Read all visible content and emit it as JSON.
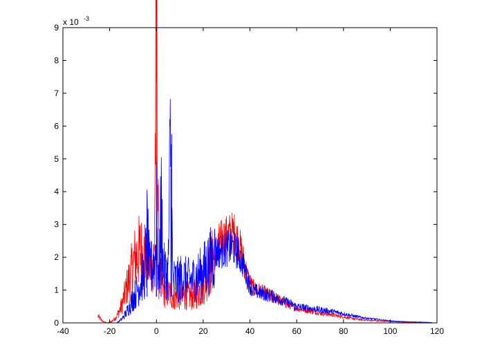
{
  "chart_data": {
    "type": "line",
    "title": "",
    "xlabel": "",
    "ylabel": "",
    "xlim": [
      -40,
      120
    ],
    "ylim": [
      0,
      9
    ],
    "xticks": [
      -40,
      -20,
      0,
      20,
      40,
      60,
      80,
      100,
      120
    ],
    "yticks": [
      0,
      1,
      2,
      3,
      4,
      5,
      6,
      7,
      8,
      9
    ],
    "xtick_labels": [
      "-40",
      "-20",
      "0",
      "20",
      "40",
      "60",
      "80",
      "100",
      "120"
    ],
    "ytick_labels": [
      "0",
      "1",
      "2",
      "3",
      "4",
      "5",
      "6",
      "7",
      "8",
      "9"
    ],
    "y_exponent_prefix": "x 10",
    "y_exponent_power": "-3",
    "grid": false,
    "series": [
      {
        "color": "#ff0000",
        "x": [
          -25,
          -23,
          -21,
          -19,
          -17,
          -15,
          -13,
          -11,
          -9,
          -7,
          -5,
          -3,
          -1,
          0,
          1,
          3,
          5,
          7,
          9,
          11,
          13,
          15,
          17,
          19,
          21,
          23,
          25,
          27,
          29,
          31,
          33,
          35,
          37,
          39,
          41,
          43,
          45,
          50,
          55,
          60,
          65,
          70,
          75,
          80,
          85,
          90,
          95,
          100,
          105,
          110,
          115,
          118
        ],
        "y": [
          0.2,
          0.05,
          0.0,
          0.05,
          0.2,
          0.5,
          1.0,
          1.5,
          2.0,
          2.2,
          2.0,
          1.8,
          2.0,
          8.8,
          1.5,
          1.0,
          0.9,
          0.85,
          0.8,
          0.8,
          0.85,
          0.8,
          0.9,
          1.0,
          1.3,
          1.7,
          2.1,
          2.5,
          2.6,
          2.7,
          2.75,
          2.5,
          2.0,
          1.4,
          1.1,
          1.0,
          0.95,
          0.8,
          0.6,
          0.45,
          0.38,
          0.3,
          0.25,
          0.18,
          0.12,
          0.08,
          0.06,
          0.04,
          0.02,
          0.02,
          0.01,
          0.0
        ]
      },
      {
        "color": "#0000ff",
        "x": [
          -17,
          -15,
          -13,
          -11,
          -9,
          -7,
          -5,
          -4,
          -3,
          -1,
          0,
          1,
          2,
          3,
          5,
          6,
          7,
          9,
          11,
          13,
          15,
          17,
          19,
          21,
          23,
          25,
          27,
          29,
          31,
          33,
          35,
          37,
          39,
          41,
          43,
          45,
          50,
          55,
          60,
          65,
          70,
          75,
          80,
          85,
          90,
          95,
          100,
          105,
          110,
          115,
          118
        ],
        "y": [
          0.0,
          0.1,
          0.3,
          0.6,
          0.9,
          1.2,
          1.5,
          2.8,
          1.6,
          1.8,
          2.4,
          1.2,
          3.7,
          1.6,
          1.5,
          5.7,
          1.3,
          1.3,
          1.4,
          1.3,
          1.3,
          1.4,
          1.5,
          1.7,
          1.9,
          2.1,
          2.2,
          2.2,
          2.3,
          2.3,
          2.1,
          1.8,
          1.3,
          1.0,
          0.95,
          0.9,
          0.8,
          0.65,
          0.5,
          0.45,
          0.4,
          0.35,
          0.28,
          0.2,
          0.14,
          0.1,
          0.06,
          0.04,
          0.03,
          0.02,
          0.01
        ]
      }
    ],
    "spikes": [
      {
        "series_index": 0,
        "x": 0,
        "y": 8.8
      },
      {
        "series_index": 0,
        "x": 0,
        "y": 5.1
      },
      {
        "series_index": 1,
        "x": 0,
        "y": 4.9
      },
      {
        "series_index": 1,
        "x": 2,
        "y": 3.7
      },
      {
        "series_index": 1,
        "x": 6.5,
        "y": 5.75
      },
      {
        "series_index": 1,
        "x": 6.2,
        "y": 4.7
      },
      {
        "series_index": 1,
        "x": -4,
        "y": 3.2
      },
      {
        "series_index": 0,
        "x": -5,
        "y": 3.0
      }
    ]
  }
}
